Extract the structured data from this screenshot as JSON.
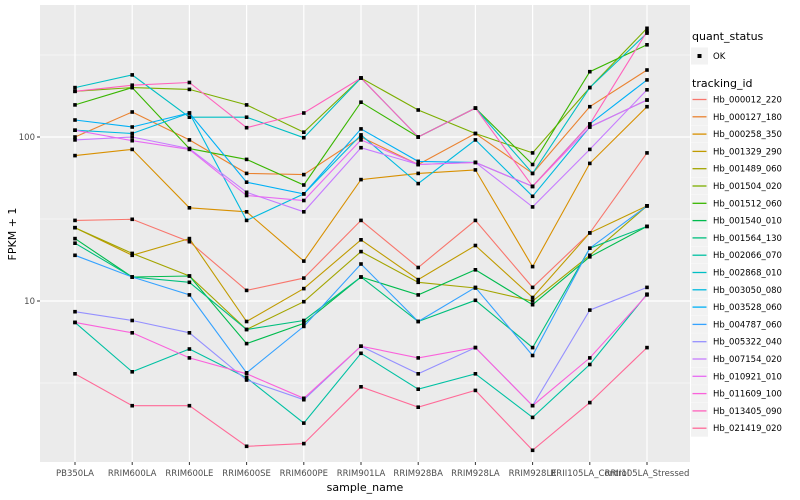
{
  "axes": {
    "x_title": "sample_name",
    "y_title": "FPKM + 1"
  },
  "legend": {
    "quant_status_title": "quant_status",
    "quant_status_items": [
      {
        "label": "OK",
        "marker_color": "#000000",
        "marker_shape": "square"
      }
    ],
    "tracking_id_title": "tracking_id"
  },
  "style": {
    "panel_bg": "#ebebeb",
    "grid_color": "#ffffff",
    "legend_key_bg": "#f2f2f2",
    "tick_text_color": "#4d4d4d",
    "point_color": "#000000"
  },
  "chart_data": {
    "type": "line",
    "title": "",
    "xlabel": "sample_name",
    "ylabel": "FPKM + 1",
    "y_scale": "log10",
    "ylim": [
      1.1,
      520
    ],
    "y_major_ticks": [
      10,
      100
    ],
    "y_minor_gridlines": [
      3.162,
      31.62,
      316.2
    ],
    "grid": "on",
    "legend_position": "right",
    "point_marker": "black square (quant_status OK) at every observation",
    "categories": [
      "PB350LA",
      "RRIM600LA",
      "RRIM600LE",
      "RRIM600SE",
      "RRIM600PE",
      "RRIM901LA",
      "RRIM928BA",
      "RRIM928LA",
      "RRIM928LE",
      "RRII105LA_Control",
      "RRII105LA_Stressed"
    ],
    "series": [
      {
        "name": "Hb_000012_220",
        "color": "#F8766D",
        "values": [
          31,
          31.5,
          23,
          11.6,
          13.8,
          31,
          16,
          31,
          12.1,
          26,
          80
        ]
      },
      {
        "name": "Hb_000127_180",
        "color": "#EA8331",
        "values": [
          100,
          142,
          96,
          60,
          59,
          100,
          68,
          105,
          60,
          153,
          256
        ]
      },
      {
        "name": "Hb_000258_350",
        "color": "#D89000",
        "values": [
          77,
          84,
          37,
          35,
          17.5,
          55,
          60,
          63,
          16.2,
          69,
          153
        ]
      },
      {
        "name": "Hb_001329_290",
        "color": "#C09B00",
        "values": [
          28,
          19,
          24,
          7.5,
          11.9,
          23.6,
          13.5,
          21.8,
          10.5,
          26,
          38
        ]
      },
      {
        "name": "Hb_001489_060",
        "color": "#A3A500",
        "values": [
          28,
          19.5,
          14.2,
          6.7,
          9.9,
          20,
          13,
          12,
          10,
          19,
          38
        ]
      },
      {
        "name": "Hb_001504_020",
        "color": "#7CAE00",
        "values": [
          190,
          200,
          195,
          157,
          107,
          229,
          146,
          105,
          80,
          200,
          460
        ]
      },
      {
        "name": "Hb_001512_060",
        "color": "#39B600",
        "values": [
          157,
          200,
          85,
          73,
          51,
          163,
          100,
          150,
          68,
          250,
          365
        ]
      },
      {
        "name": "Hb_001540_010",
        "color": "#00BB4E",
        "values": [
          24,
          14,
          14.2,
          5.5,
          7.3,
          14,
          10.9,
          15.5,
          9.5,
          18.6,
          28.5
        ]
      },
      {
        "name": "Hb_001564_130",
        "color": "#00BF7D",
        "values": [
          22.5,
          14,
          13,
          6.7,
          7.6,
          14,
          7.5,
          10.1,
          5.2,
          21,
          28.5
        ]
      },
      {
        "name": "Hb_002066_070",
        "color": "#00C1A3",
        "values": [
          7.4,
          3.7,
          5.1,
          3.4,
          1.8,
          4.8,
          2.9,
          3.6,
          1.95,
          4.1,
          11
        ]
      },
      {
        "name": "Hb_002868_010",
        "color": "#00BFC4",
        "values": [
          200,
          239,
          132,
          132,
          99,
          229,
          100,
          150,
          60,
          200,
          430
        ]
      },
      {
        "name": "Hb_003050_080",
        "color": "#00BAE0",
        "values": [
          110,
          105,
          140,
          31,
          45,
          103,
          52,
          96,
          43.5,
          115,
          168
        ]
      },
      {
        "name": "Hb_003528_060",
        "color": "#00B0F6",
        "values": [
          127,
          115,
          140,
          53,
          45,
          112,
          71,
          70,
          50,
          120,
          223
        ]
      },
      {
        "name": "Hb_004787_060",
        "color": "#35A2FF",
        "values": [
          19,
          14,
          10.9,
          3.65,
          7.0,
          16.8,
          7.5,
          12.1,
          4.65,
          21,
          38
        ]
      },
      {
        "name": "Hb_005322_040",
        "color": "#9590FF",
        "values": [
          8.6,
          7.6,
          6.4,
          3.3,
          2.5,
          5.3,
          3.6,
          5.2,
          2.3,
          8.8,
          12.1
        ]
      },
      {
        "name": "Hb_007154_020",
        "color": "#C77CFF",
        "values": [
          96,
          100,
          85,
          46,
          35,
          86,
          68,
          70,
          37.5,
          84,
          194
        ]
      },
      {
        "name": "Hb_010921_010",
        "color": "#E76BF3",
        "values": [
          110,
          95,
          84,
          44,
          41,
          96,
          68,
          70,
          50,
          115,
          168
        ]
      },
      {
        "name": "Hb_011609_100",
        "color": "#FA62DB",
        "values": [
          7.4,
          6.4,
          4.5,
          3.6,
          2.55,
          5.3,
          4.5,
          5.2,
          2.3,
          4.5,
          10.9
        ]
      },
      {
        "name": "Hb_013405_090",
        "color": "#FF62BC",
        "values": [
          190,
          207,
          215,
          114,
          140,
          229,
          100,
          150,
          50,
          120,
          440
        ]
      },
      {
        "name": "Hb_021419_020",
        "color": "#FF6A98",
        "values": [
          3.6,
          2.3,
          2.3,
          1.3,
          1.35,
          3.0,
          2.25,
          2.85,
          1.23,
          2.4,
          5.2
        ]
      }
    ]
  }
}
